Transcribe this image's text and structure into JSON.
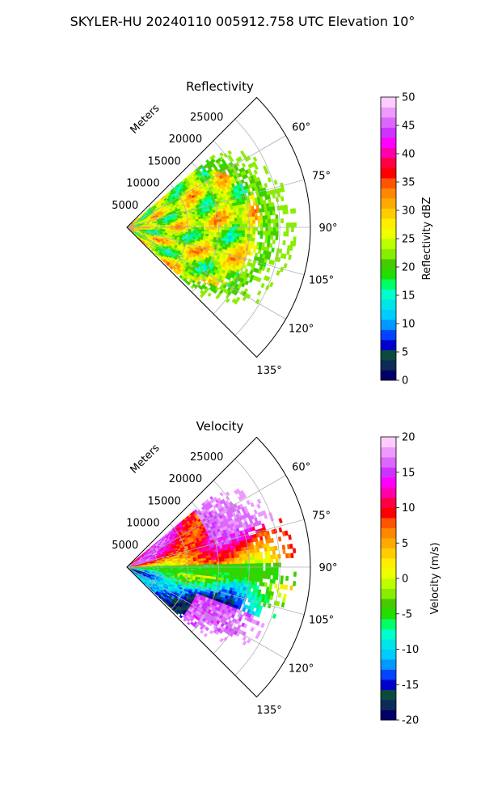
{
  "suptitle": "SKYLER-HU  20240110  005912.758 UTC Elevation 10°",
  "colors": {
    "reflectivity_cmap": [
      "#000066",
      "#0d2a59",
      "#0b4a3e",
      "#0000cc",
      "#0044ff",
      "#0099ff",
      "#00ccff",
      "#00e6e6",
      "#00ffcc",
      "#00ff66",
      "#22dd00",
      "#44cc00",
      "#88ee00",
      "#bbff00",
      "#eeff00",
      "#ffee00",
      "#ffcc00",
      "#ffaa00",
      "#ff8800",
      "#ff5500",
      "#ff0000",
      "#ff0044",
      "#ff00aa",
      "#ff00ff",
      "#cc33ff",
      "#dd66ff",
      "#ee99ff",
      "#ffccff"
    ],
    "velocity_cmap": [
      "#000066",
      "#0d2a59",
      "#0b4a3e",
      "#0000cc",
      "#0044ff",
      "#0099ff",
      "#00ccff",
      "#00e6e6",
      "#00ffcc",
      "#00ff66",
      "#22dd00",
      "#44cc00",
      "#88ee00",
      "#bbff00",
      "#eeff00",
      "#ffee00",
      "#ffcc00",
      "#ffaa00",
      "#ff8800",
      "#ff5500",
      "#ff0000",
      "#ff0044",
      "#ff00aa",
      "#ff00ff",
      "#cc33ff",
      "#dd66ff",
      "#ee99ff",
      "#ffccff"
    ]
  },
  "chart_data": [
    {
      "type": "heatmap",
      "projection": "polar-sector",
      "title": "Reflectivity",
      "field": "reflectivity",
      "radial_label": "Meters",
      "r_ticks": [
        5000,
        10000,
        15000,
        20000,
        25000
      ],
      "r_tick_labels": [
        "5000",
        "10000",
        "15000",
        "20000",
        "25000"
      ],
      "rlim": [
        0,
        30000
      ],
      "theta_ticks_deg": [
        60,
        75,
        90,
        105,
        120,
        135
      ],
      "theta_tick_labels": [
        "60°",
        "75°",
        "90°",
        "105°",
        "120°",
        "135°"
      ],
      "theta_range_deg": [
        45,
        135
      ],
      "data_azimuth_range_deg": [
        50,
        133
      ],
      "data_max_range_m": 25000,
      "colorbar": {
        "label": "Reflectivity dBZ",
        "vmin": 0,
        "vmax": 50,
        "ticks": [
          0,
          5,
          10,
          15,
          20,
          25,
          30,
          35,
          40,
          45,
          50
        ],
        "tick_labels": [
          "0",
          "5",
          "10",
          "15",
          "20",
          "25",
          "30",
          "35",
          "40",
          "45",
          "50"
        ]
      },
      "grid": true
    },
    {
      "type": "heatmap",
      "projection": "polar-sector",
      "title": "Velocity",
      "field": "velocity",
      "radial_label": "Meters",
      "r_ticks": [
        5000,
        10000,
        15000,
        20000,
        25000
      ],
      "r_tick_labels": [
        "5000",
        "10000",
        "15000",
        "20000",
        "25000"
      ],
      "rlim": [
        0,
        30000
      ],
      "theta_ticks_deg": [
        60,
        75,
        90,
        105,
        120,
        135
      ],
      "theta_tick_labels": [
        "60°",
        "75°",
        "90°",
        "105°",
        "120°",
        "135°"
      ],
      "theta_range_deg": [
        45,
        135
      ],
      "data_azimuth_range_deg": [
        50,
        133
      ],
      "data_max_range_m": 25000,
      "colorbar": {
        "label": "Velocity (m/s)",
        "vmin": -20,
        "vmax": 20,
        "ticks": [
          -20,
          -15,
          -10,
          -5,
          0,
          5,
          10,
          15,
          20
        ],
        "tick_labels": [
          "-20",
          "-15",
          "-10",
          "-5",
          "0",
          "5",
          "10",
          "15",
          "20"
        ]
      },
      "grid": true
    }
  ]
}
